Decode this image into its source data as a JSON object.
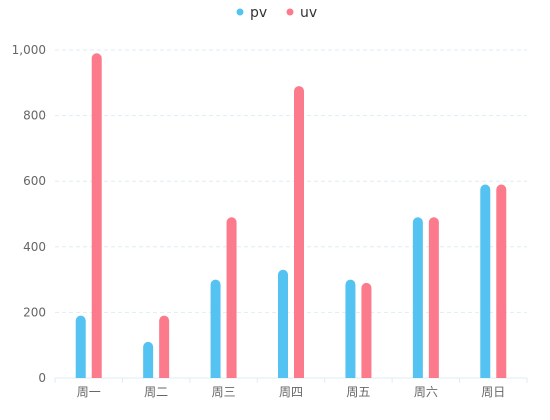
{
  "chart_data": {
    "type": "bar",
    "title": "",
    "xlabel": "",
    "ylabel": "",
    "categories": [
      "周一",
      "周二",
      "周三",
      "周四",
      "周五",
      "周六",
      "周日"
    ],
    "series": [
      {
        "name": "pv",
        "color": "#55C3F2",
        "values": [
          190,
          110,
          300,
          330,
          300,
          490,
          590
        ]
      },
      {
        "name": "uv",
        "color": "#FB7A8B",
        "values": [
          990,
          190,
          490,
          890,
          290,
          490,
          590
        ]
      }
    ],
    "ylim": [
      0,
      1000
    ],
    "yticks": [
      0,
      200,
      400,
      600,
      800,
      1000
    ],
    "ytick_labels": [
      "0",
      "200",
      "400",
      "600",
      "800",
      "1,000"
    ],
    "grid": true,
    "grid_color": "#DDEEF3",
    "axis_color": "#DDEEF3",
    "legend_position": "top-center"
  }
}
